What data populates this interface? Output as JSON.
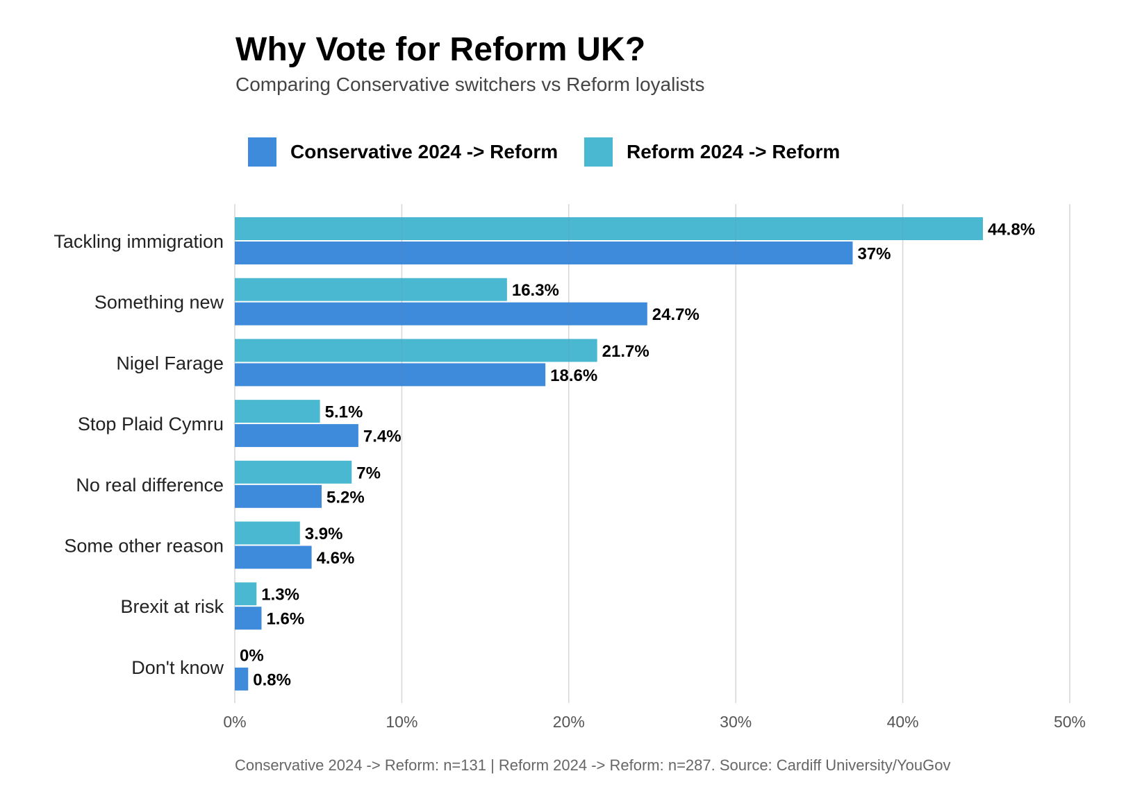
{
  "chart_data": {
    "type": "bar",
    "orientation": "horizontal",
    "title": "Why Vote for Reform UK?",
    "subtitle": "Comparing Conservative switchers vs Reform loyalists",
    "xlabel": "",
    "ylabel": "",
    "xlim": [
      0,
      50
    ],
    "x_ticks": [
      0,
      10,
      20,
      30,
      40,
      50
    ],
    "x_tick_labels": [
      "0%",
      "10%",
      "20%",
      "30%",
      "40%",
      "50%"
    ],
    "grid": "vertical",
    "legend_position": "top-left",
    "categories": [
      "Tackling immigration",
      "Something new",
      "Nigel Farage",
      "Stop Plaid Cymru",
      "No real difference",
      "Some other reason",
      "Brexit at risk",
      "Don't know"
    ],
    "series": [
      {
        "name": "Reform 2024 -> Reform",
        "color": "#4AB8D0",
        "values": [
          44.8,
          16.3,
          21.7,
          5.1,
          7,
          3.9,
          1.3,
          0
        ],
        "labels": [
          "44.8%",
          "16.3%",
          "21.7%",
          "5.1%",
          "7%",
          "3.9%",
          "1.3%",
          "0%"
        ]
      },
      {
        "name": "Conservative 2024 -> Reform",
        "color": "#3E8ADB",
        "values": [
          37,
          24.7,
          18.6,
          7.4,
          5.2,
          4.6,
          1.6,
          0.8
        ],
        "labels": [
          "37%",
          "24.7%",
          "18.6%",
          "7.4%",
          "5.2%",
          "4.6%",
          "1.6%",
          "0.8%"
        ]
      }
    ],
    "legend": [
      {
        "label": "Conservative 2024 -> Reform",
        "color": "#3E8ADB"
      },
      {
        "label": "Reform 2024 -> Reform",
        "color": "#4AB8D0"
      }
    ],
    "caption": "Conservative 2024 -> Reform: n=131 | Reform 2024 -> Reform: n=287. Source: Cardiff University/YouGov"
  }
}
